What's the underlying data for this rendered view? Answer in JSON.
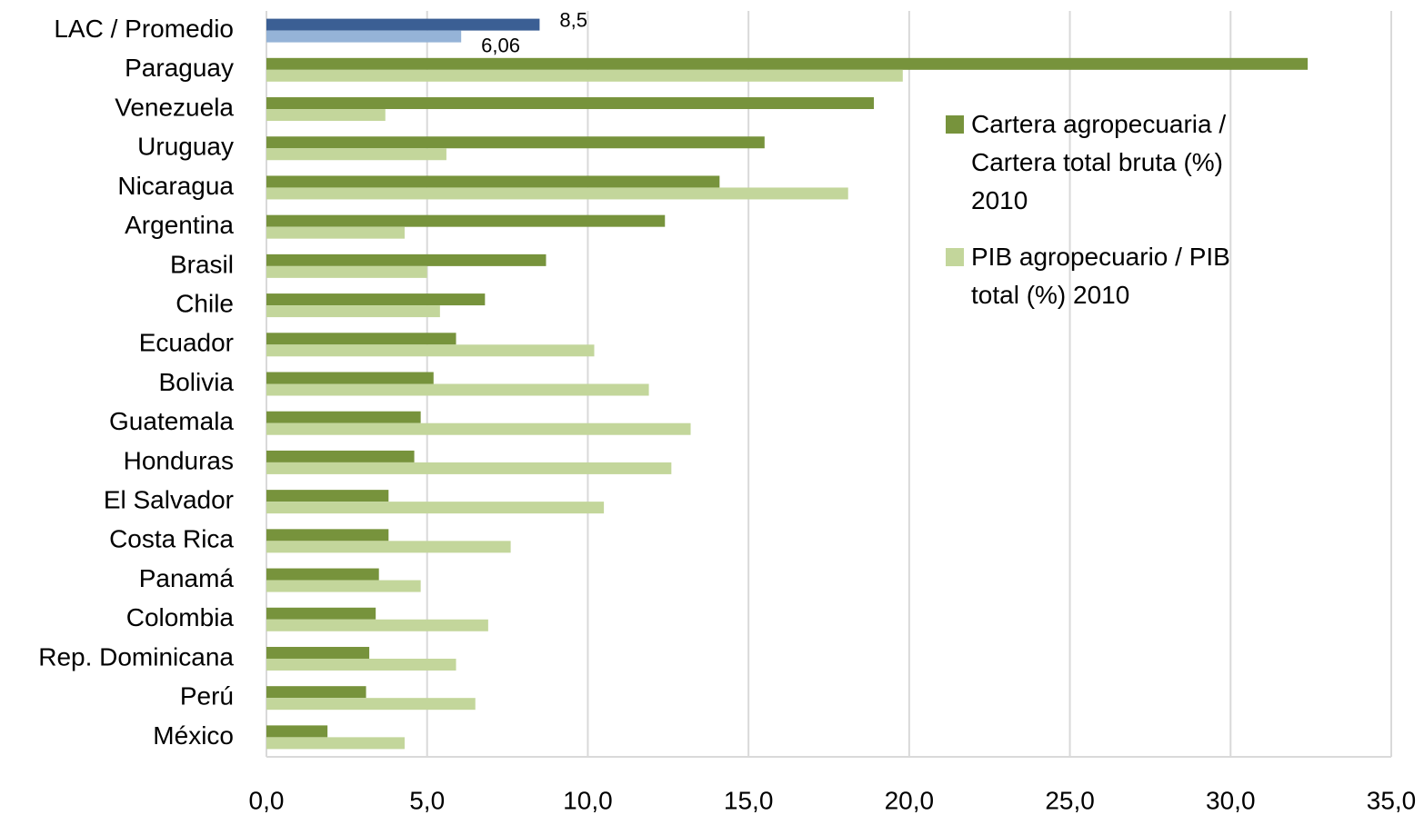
{
  "chart_data": {
    "type": "hbar",
    "categories": [
      "LAC / Promedio",
      "Paraguay",
      "Venezuela",
      "Uruguay",
      "Nicaragua",
      "Argentina",
      "Brasil",
      "Chile",
      "Ecuador",
      "Bolivia",
      "Guatemala",
      "Honduras",
      "El Salvador",
      "Costa Rica",
      "Panamá",
      "Colombia",
      "Rep. Dominicana",
      "Perú",
      "México"
    ],
    "series": [
      {
        "name": "Cartera agropecuaria / Cartera total bruta (%) 2010",
        "color": "#77933c",
        "colors": [
          "#3b5f94",
          "#77933c",
          "#77933c",
          "#77933c",
          "#77933c",
          "#77933c",
          "#77933c",
          "#77933c",
          "#77933c",
          "#77933c",
          "#77933c",
          "#77933c",
          "#77933c",
          "#77933c",
          "#77933c",
          "#77933c",
          "#77933c",
          "#77933c",
          "#77933c"
        ],
        "values": [
          8.5,
          32.4,
          18.9,
          15.5,
          14.1,
          12.4,
          8.7,
          6.8,
          5.9,
          5.2,
          4.8,
          4.6,
          3.8,
          3.8,
          3.5,
          3.4,
          3.2,
          3.1,
          1.9
        ],
        "value_labels": [
          "8,5",
          null,
          null,
          null,
          null,
          null,
          null,
          null,
          null,
          null,
          null,
          null,
          null,
          null,
          null,
          null,
          null,
          null,
          null
        ]
      },
      {
        "name": "PIB agropecuario / PIB total (%) 2010",
        "color": "#c3d69b",
        "colors": [
          "#95b3d7",
          "#c3d69b",
          "#c3d69b",
          "#c3d69b",
          "#c3d69b",
          "#c3d69b",
          "#c3d69b",
          "#c3d69b",
          "#c3d69b",
          "#c3d69b",
          "#c3d69b",
          "#c3d69b",
          "#c3d69b",
          "#c3d69b",
          "#c3d69b",
          "#c3d69b",
          "#c3d69b",
          "#c3d69b",
          "#c3d69b"
        ],
        "values": [
          6.06,
          19.8,
          3.7,
          5.6,
          18.1,
          4.3,
          5.0,
          5.4,
          10.2,
          11.9,
          13.2,
          12.6,
          10.5,
          7.6,
          4.8,
          6.9,
          5.9,
          6.5,
          4.3
        ],
        "value_labels": [
          "6,06",
          null,
          null,
          null,
          null,
          null,
          null,
          null,
          null,
          null,
          null,
          null,
          null,
          null,
          null,
          null,
          null,
          null,
          null
        ]
      }
    ],
    "xlim": [
      0,
      35
    ],
    "xticks": [
      {
        "value": 0,
        "label": "0,0"
      },
      {
        "value": 5,
        "label": "5,0"
      },
      {
        "value": 10,
        "label": "10,0"
      },
      {
        "value": 15,
        "label": "15,0"
      },
      {
        "value": 20,
        "label": "20,0"
      },
      {
        "value": 25,
        "label": "25,0"
      },
      {
        "value": 30,
        "label": "30,0"
      },
      {
        "value": 35,
        "label": "35,0"
      }
    ],
    "grid": true
  }
}
